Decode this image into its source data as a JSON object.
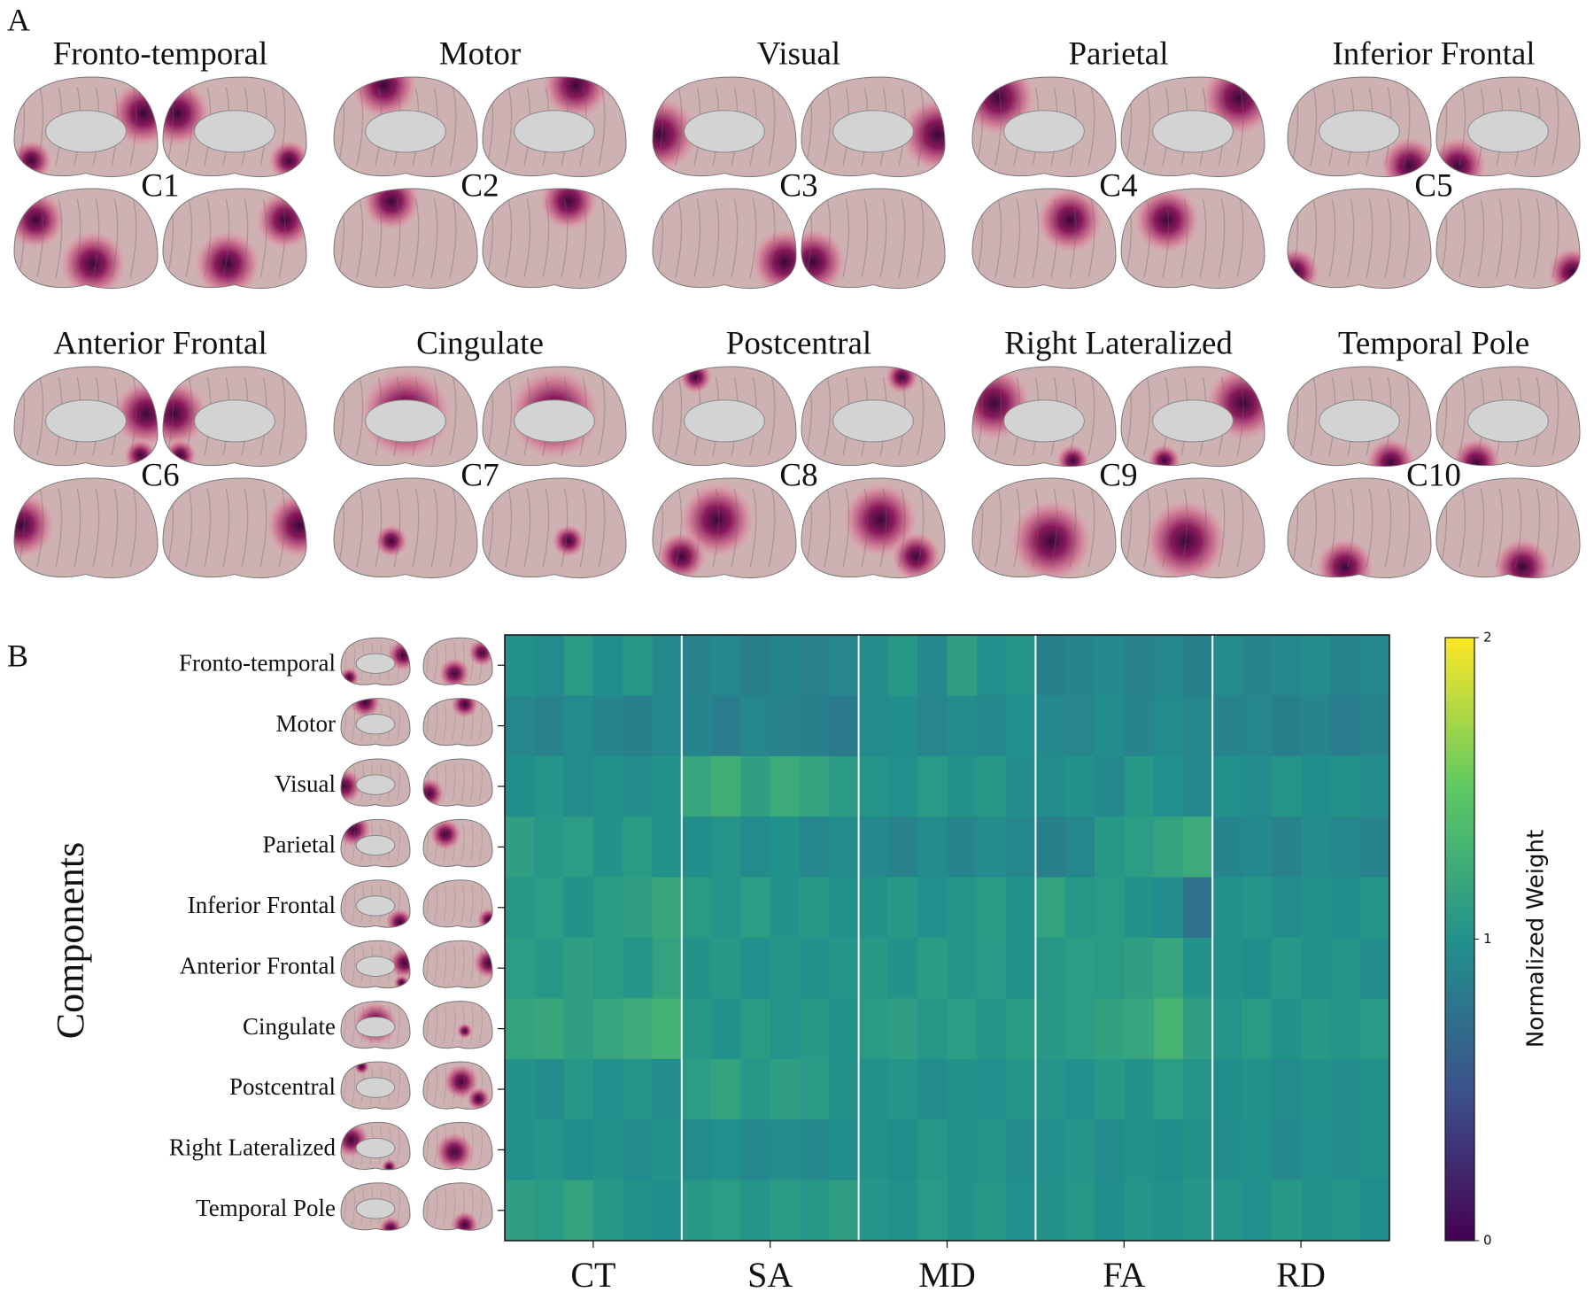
{
  "panel_a": {
    "label": "A",
    "components": [
      {
        "title": "Fronto-temporal",
        "code": "C1"
      },
      {
        "title": "Motor",
        "code": "C2"
      },
      {
        "title": "Visual",
        "code": "C3"
      },
      {
        "title": "Parietal",
        "code": "C4"
      },
      {
        "title": "Inferior Frontal",
        "code": "C5"
      },
      {
        "title": "Anterior Frontal",
        "code": "C6"
      },
      {
        "title": "Cingulate",
        "code": "C7"
      },
      {
        "title": "Postcentral",
        "code": "C8"
      },
      {
        "title": "Right Lateralized",
        "code": "C9"
      },
      {
        "title": "Temporal Pole",
        "code": "C10"
      }
    ]
  },
  "chart_data": {
    "type": "heatmap",
    "panel_label": "B",
    "ylabel": "Components",
    "rows": [
      "Fronto-temporal",
      "Motor",
      "Visual",
      "Parietal",
      "Inferior Frontal",
      "Anterior Frontal",
      "Cingulate",
      "Postcentral",
      "Right Lateralized",
      "Temporal Pole"
    ],
    "categories": [
      "CT",
      "SA",
      "MD",
      "FA",
      "RD"
    ],
    "values": [
      [
        [
          1.02,
          0.95,
          1.08,
          0.98,
          1.05,
          0.92
        ],
        [
          0.88,
          0.93,
          0.85,
          0.9,
          0.87,
          0.91
        ],
        [
          0.97,
          1.05,
          0.93,
          1.12,
          0.99,
          1.03
        ],
        [
          0.86,
          0.9,
          0.94,
          0.88,
          0.92,
          0.85
        ],
        [
          0.95,
          0.89,
          0.93,
          0.97,
          0.9,
          0.94
        ]
      ],
      [
        [
          0.92,
          0.88,
          0.95,
          0.9,
          0.86,
          0.93
        ],
        [
          0.9,
          0.84,
          0.92,
          0.88,
          0.86,
          0.82
        ],
        [
          0.95,
          0.98,
          0.91,
          0.96,
          0.93,
          0.99
        ],
        [
          0.94,
          0.91,
          0.97,
          0.89,
          0.95,
          0.92
        ],
        [
          0.88,
          0.92,
          0.86,
          0.9,
          0.84,
          0.89
        ]
      ],
      [
        [
          0.98,
          1.03,
          0.95,
          1.0,
          0.96,
          1.02
        ],
        [
          1.18,
          1.25,
          1.12,
          1.22,
          1.15,
          1.08
        ],
        [
          1.04,
          0.99,
          1.07,
          1.02,
          1.05,
          0.97
        ],
        [
          0.97,
          1.01,
          0.94,
          1.05,
          0.99,
          0.93
        ],
        [
          1.0,
          0.96,
          1.03,
          0.98,
          1.02,
          0.95
        ]
      ],
      [
        [
          1.12,
          1.05,
          1.1,
          1.02,
          1.08,
          1.0
        ],
        [
          0.98,
          1.03,
          0.95,
          1.0,
          0.92,
          0.97
        ],
        [
          0.93,
          0.88,
          0.95,
          0.9,
          0.96,
          0.92
        ],
        [
          0.85,
          0.92,
          1.05,
          1.1,
          1.15,
          1.22
        ],
        [
          0.9,
          0.94,
          0.88,
          0.96,
          0.92,
          0.89
        ]
      ],
      [
        [
          1.05,
          1.1,
          1.02,
          1.08,
          1.12,
          1.2
        ],
        [
          1.08,
          1.04,
          1.1,
          1.02,
          1.06,
          1.0
        ],
        [
          1.02,
          1.06,
          0.99,
          1.04,
          1.08,
          1.01
        ],
        [
          1.15,
          1.05,
          1.08,
          1.02,
          0.96,
          0.75
        ],
        [
          1.0,
          1.04,
          0.97,
          1.02,
          0.98,
          1.03
        ]
      ],
      [
        [
          1.1,
          1.05,
          1.12,
          1.08,
          1.03,
          1.15
        ],
        [
          1.02,
          1.06,
          0.99,
          1.04,
          1.0,
          1.03
        ],
        [
          1.06,
          1.02,
          1.09,
          1.04,
          1.07,
          1.0
        ],
        [
          1.05,
          1.1,
          1.08,
          1.12,
          1.18,
          1.02
        ],
        [
          1.02,
          0.98,
          1.05,
          1.0,
          1.03,
          0.97
        ]
      ],
      [
        [
          1.15,
          1.2,
          1.12,
          1.18,
          1.22,
          1.28
        ],
        [
          1.05,
          1.0,
          1.08,
          1.03,
          1.06,
          1.01
        ],
        [
          1.08,
          1.12,
          1.05,
          1.1,
          1.04,
          1.09
        ],
        [
          1.06,
          1.1,
          1.14,
          1.18,
          1.3,
          1.12
        ],
        [
          1.04,
          1.08,
          1.01,
          1.06,
          1.03,
          1.07
        ]
      ],
      [
        [
          1.02,
          0.96,
          1.05,
          0.99,
          1.03,
          0.97
        ],
        [
          1.1,
          1.15,
          1.05,
          1.12,
          1.08,
          1.02
        ],
        [
          1.0,
          1.04,
          0.97,
          1.02,
          0.99,
          1.03
        ],
        [
          1.03,
          0.99,
          1.06,
          1.01,
          1.1,
          1.04
        ],
        [
          0.98,
          1.02,
          0.95,
          1.0,
          0.97,
          1.01
        ]
      ],
      [
        [
          1.0,
          1.04,
          0.98,
          1.02,
          0.96,
          1.01
        ],
        [
          0.95,
          0.99,
          0.93,
          0.97,
          0.94,
          0.98
        ],
        [
          1.02,
          0.98,
          1.05,
          1.0,
          1.03,
          0.97
        ],
        [
          0.99,
          1.03,
          0.96,
          1.01,
          0.98,
          1.02
        ],
        [
          0.97,
          1.0,
          0.94,
          0.99,
          0.96,
          1.0
        ]
      ],
      [
        [
          1.12,
          1.08,
          1.15,
          1.05,
          1.02,
          0.98
        ],
        [
          1.06,
          1.1,
          1.03,
          1.08,
          1.05,
          1.12
        ],
        [
          1.04,
          1.0,
          1.07,
          1.02,
          1.05,
          0.99
        ],
        [
          1.01,
          1.05,
          0.98,
          1.03,
          1.0,
          1.04
        ],
        [
          1.03,
          0.99,
          1.06,
          1.01,
          1.04,
          0.98
        ]
      ]
    ],
    "colorbar_label": "Normalized Weight",
    "zlim": [
      0,
      2
    ],
    "zticks": [
      0,
      1,
      2
    ],
    "colormap": "viridis"
  }
}
